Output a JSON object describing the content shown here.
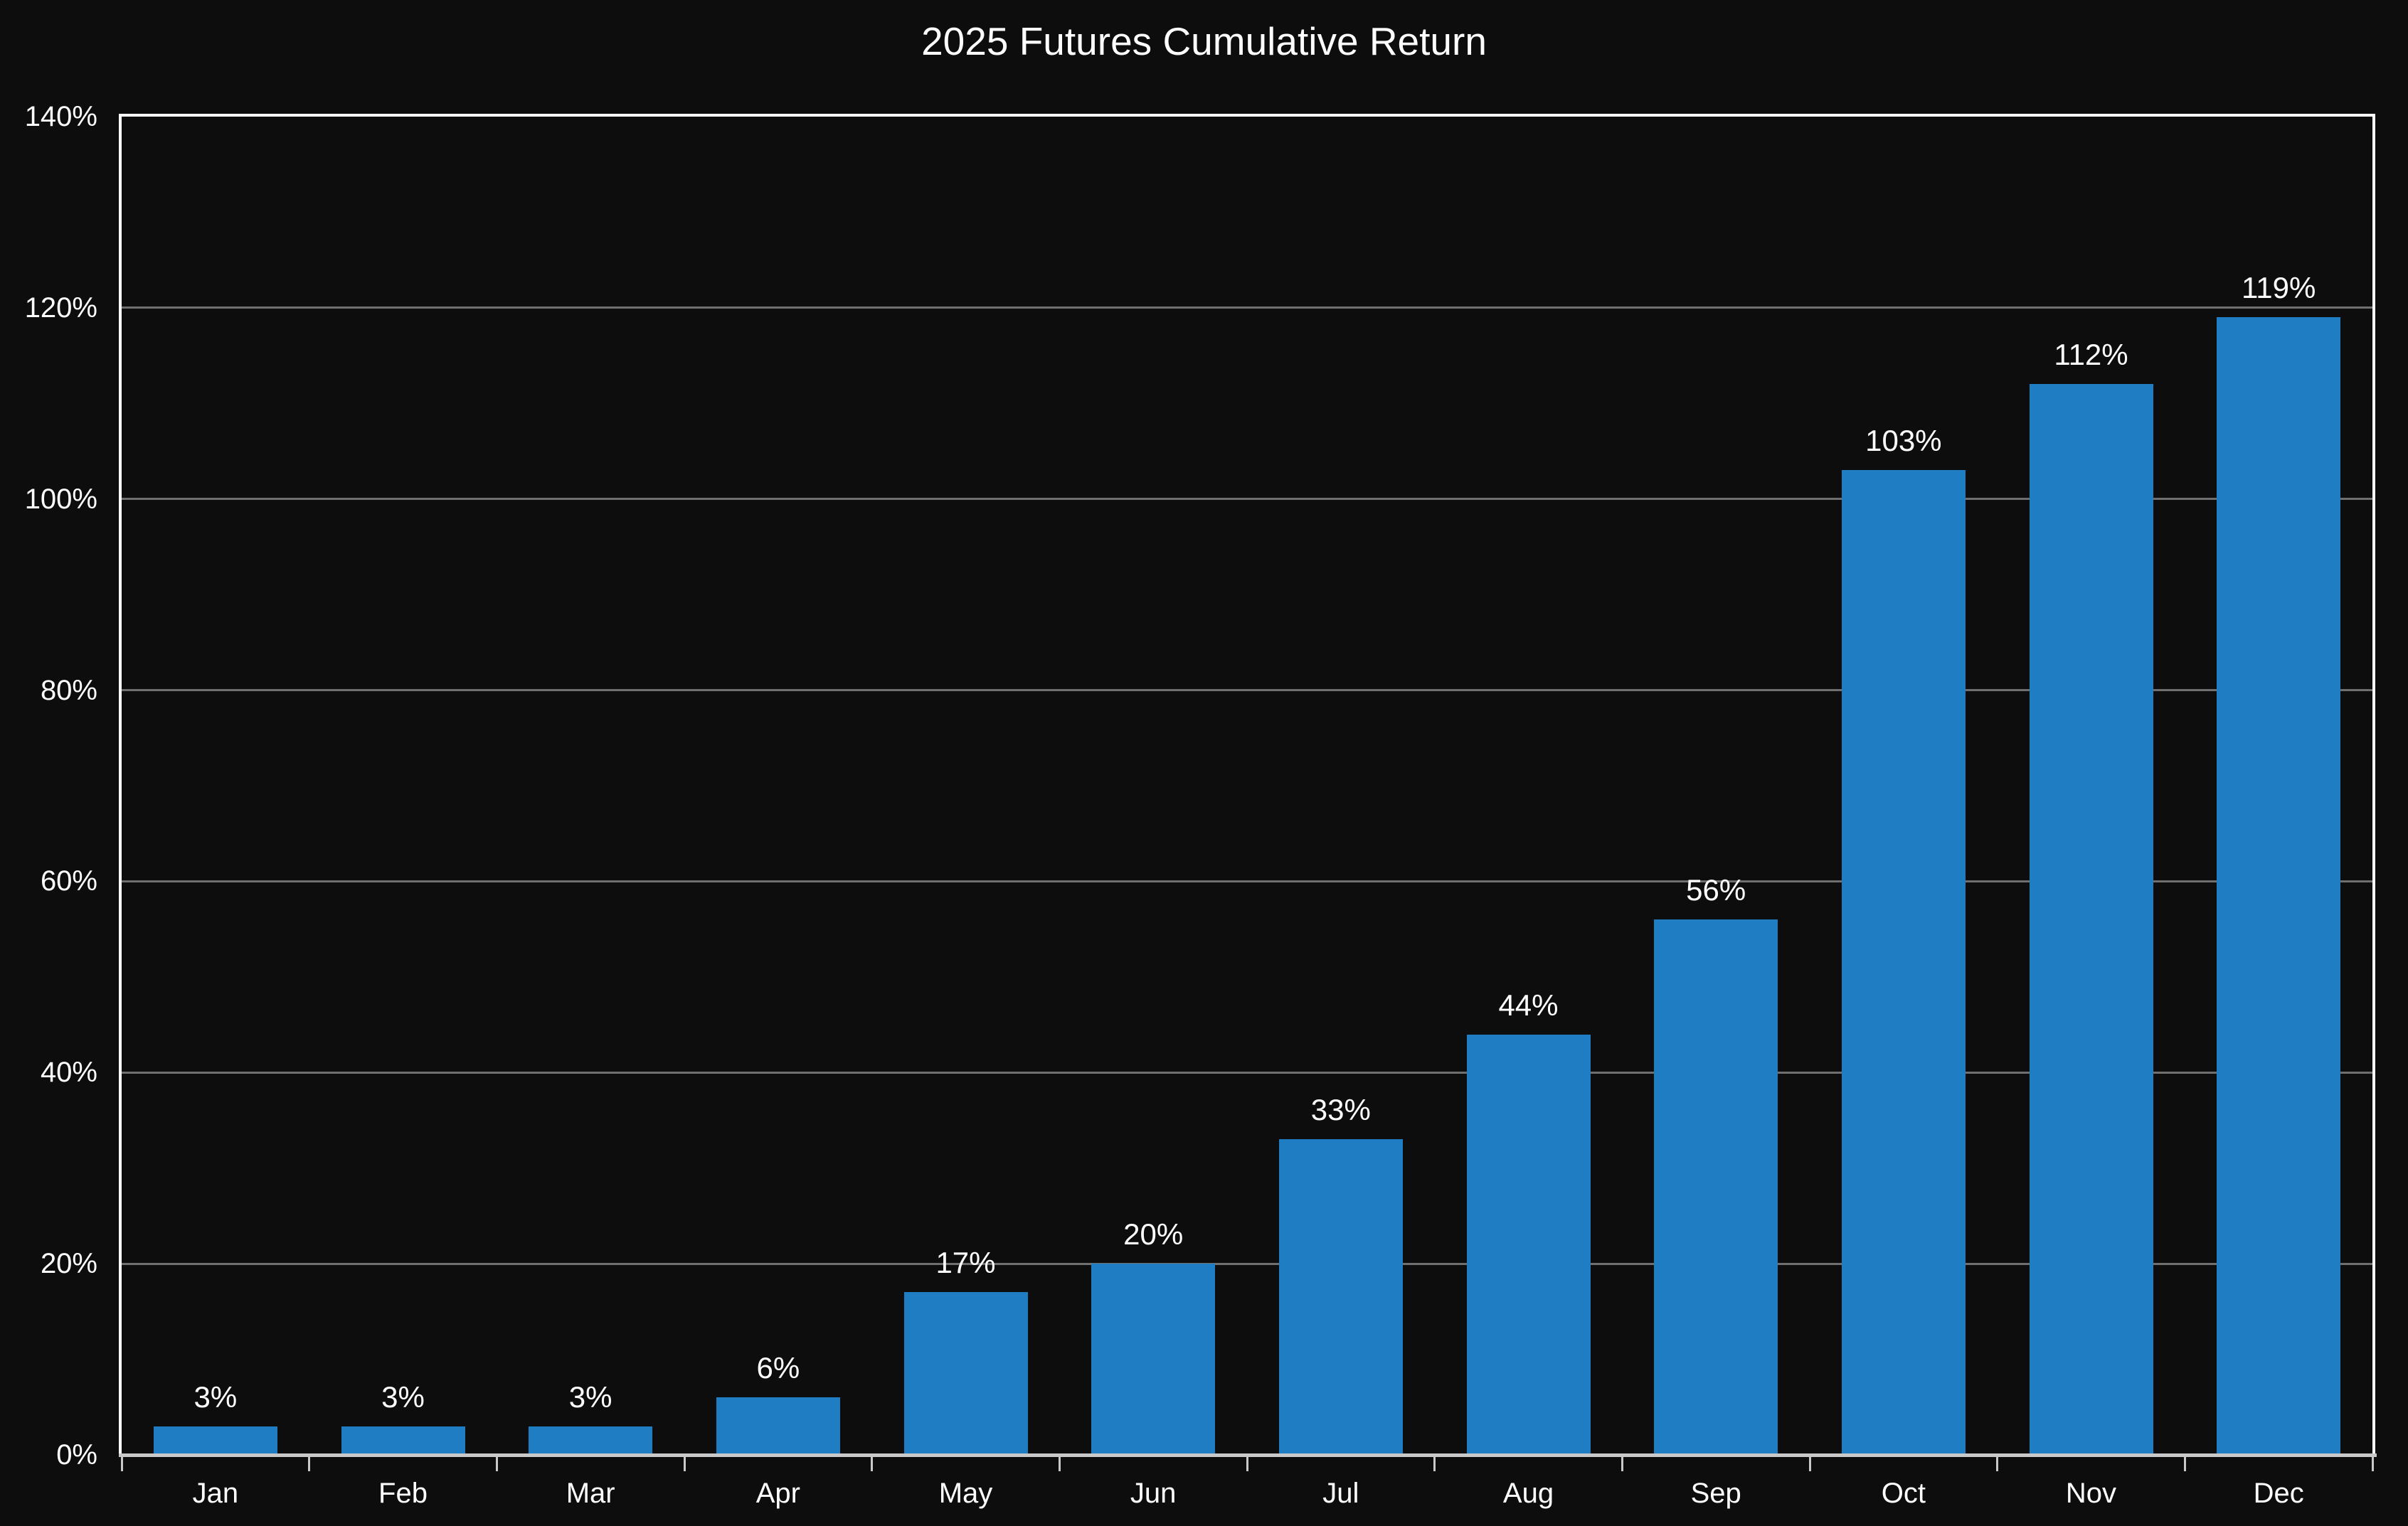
{
  "page": {
    "title": "2025 Futures Cumulative Return"
  },
  "chart_data": {
    "type": "bar",
    "title": "2025 Futures Cumulative Return",
    "categories": [
      "Jan",
      "Feb",
      "Mar",
      "Apr",
      "May",
      "Jun",
      "Jul",
      "Aug",
      "Sep",
      "Oct",
      "Nov",
      "Dec"
    ],
    "values": [
      3,
      3,
      3,
      6,
      17,
      20,
      33,
      44,
      56,
      103,
      112,
      119
    ],
    "data_labels": [
      "3%",
      "3%",
      "3%",
      "6%",
      "17%",
      "20%",
      "33%",
      "44%",
      "56%",
      "103%",
      "112%",
      "119%"
    ],
    "xlabel": "",
    "ylabel": "",
    "y_axis": {
      "min": 0,
      "max": 140,
      "ticks": [
        0,
        20,
        40,
        60,
        80,
        100,
        120,
        140
      ],
      "tick_labels": [
        "0%",
        "20%",
        "40%",
        "60%",
        "80%",
        "100%",
        "120%",
        "140%"
      ]
    },
    "grid": {
      "horizontal": true,
      "vertical": false
    },
    "legend": "none",
    "colors": {
      "background": "#0d0d0d",
      "bar": "#1f7dc4",
      "gridline": "#6f6f6f",
      "spine": "#ffffff",
      "axis_line": "#c9c9c9",
      "text": "#ffffff"
    }
  }
}
